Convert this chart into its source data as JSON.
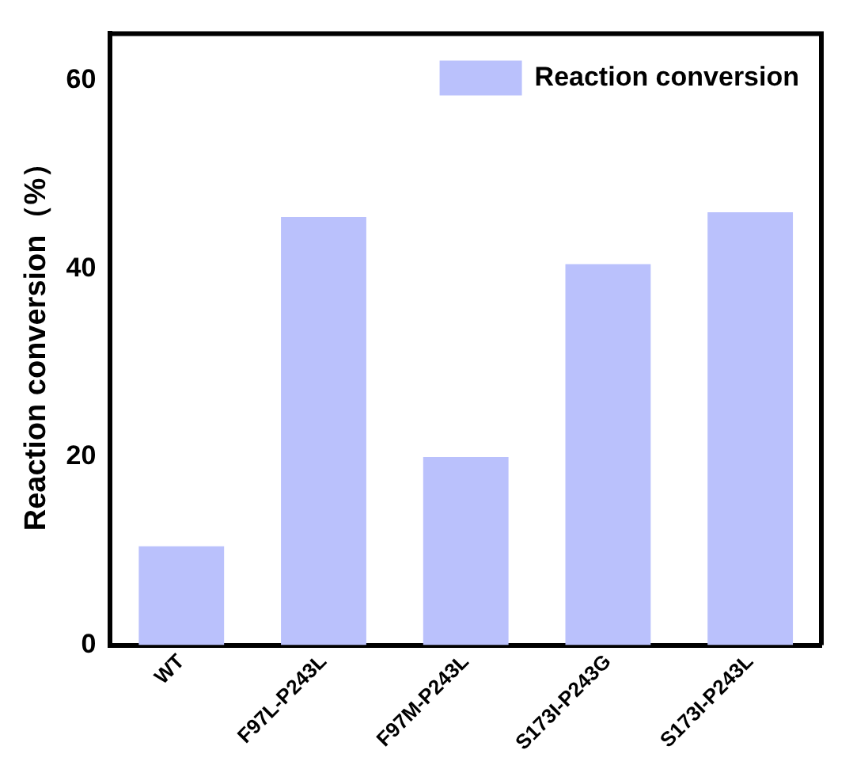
{
  "chart_data": {
    "type": "bar",
    "ylabel": "Reaction conversion（%）",
    "categories": [
      "WT",
      "F97L-P243L",
      "F97M-P243L",
      "S173I-P243G",
      "S173I-P243L"
    ],
    "series": [
      {
        "name": "Reaction conversion",
        "color": "#bac1fc",
        "values": [
          10.5,
          45.5,
          20,
          40.5,
          46
        ]
      }
    ],
    "ylim": [
      0,
      65
    ],
    "yticks": [
      0,
      20,
      40,
      60
    ],
    "grid": false,
    "legend": "top right"
  }
}
